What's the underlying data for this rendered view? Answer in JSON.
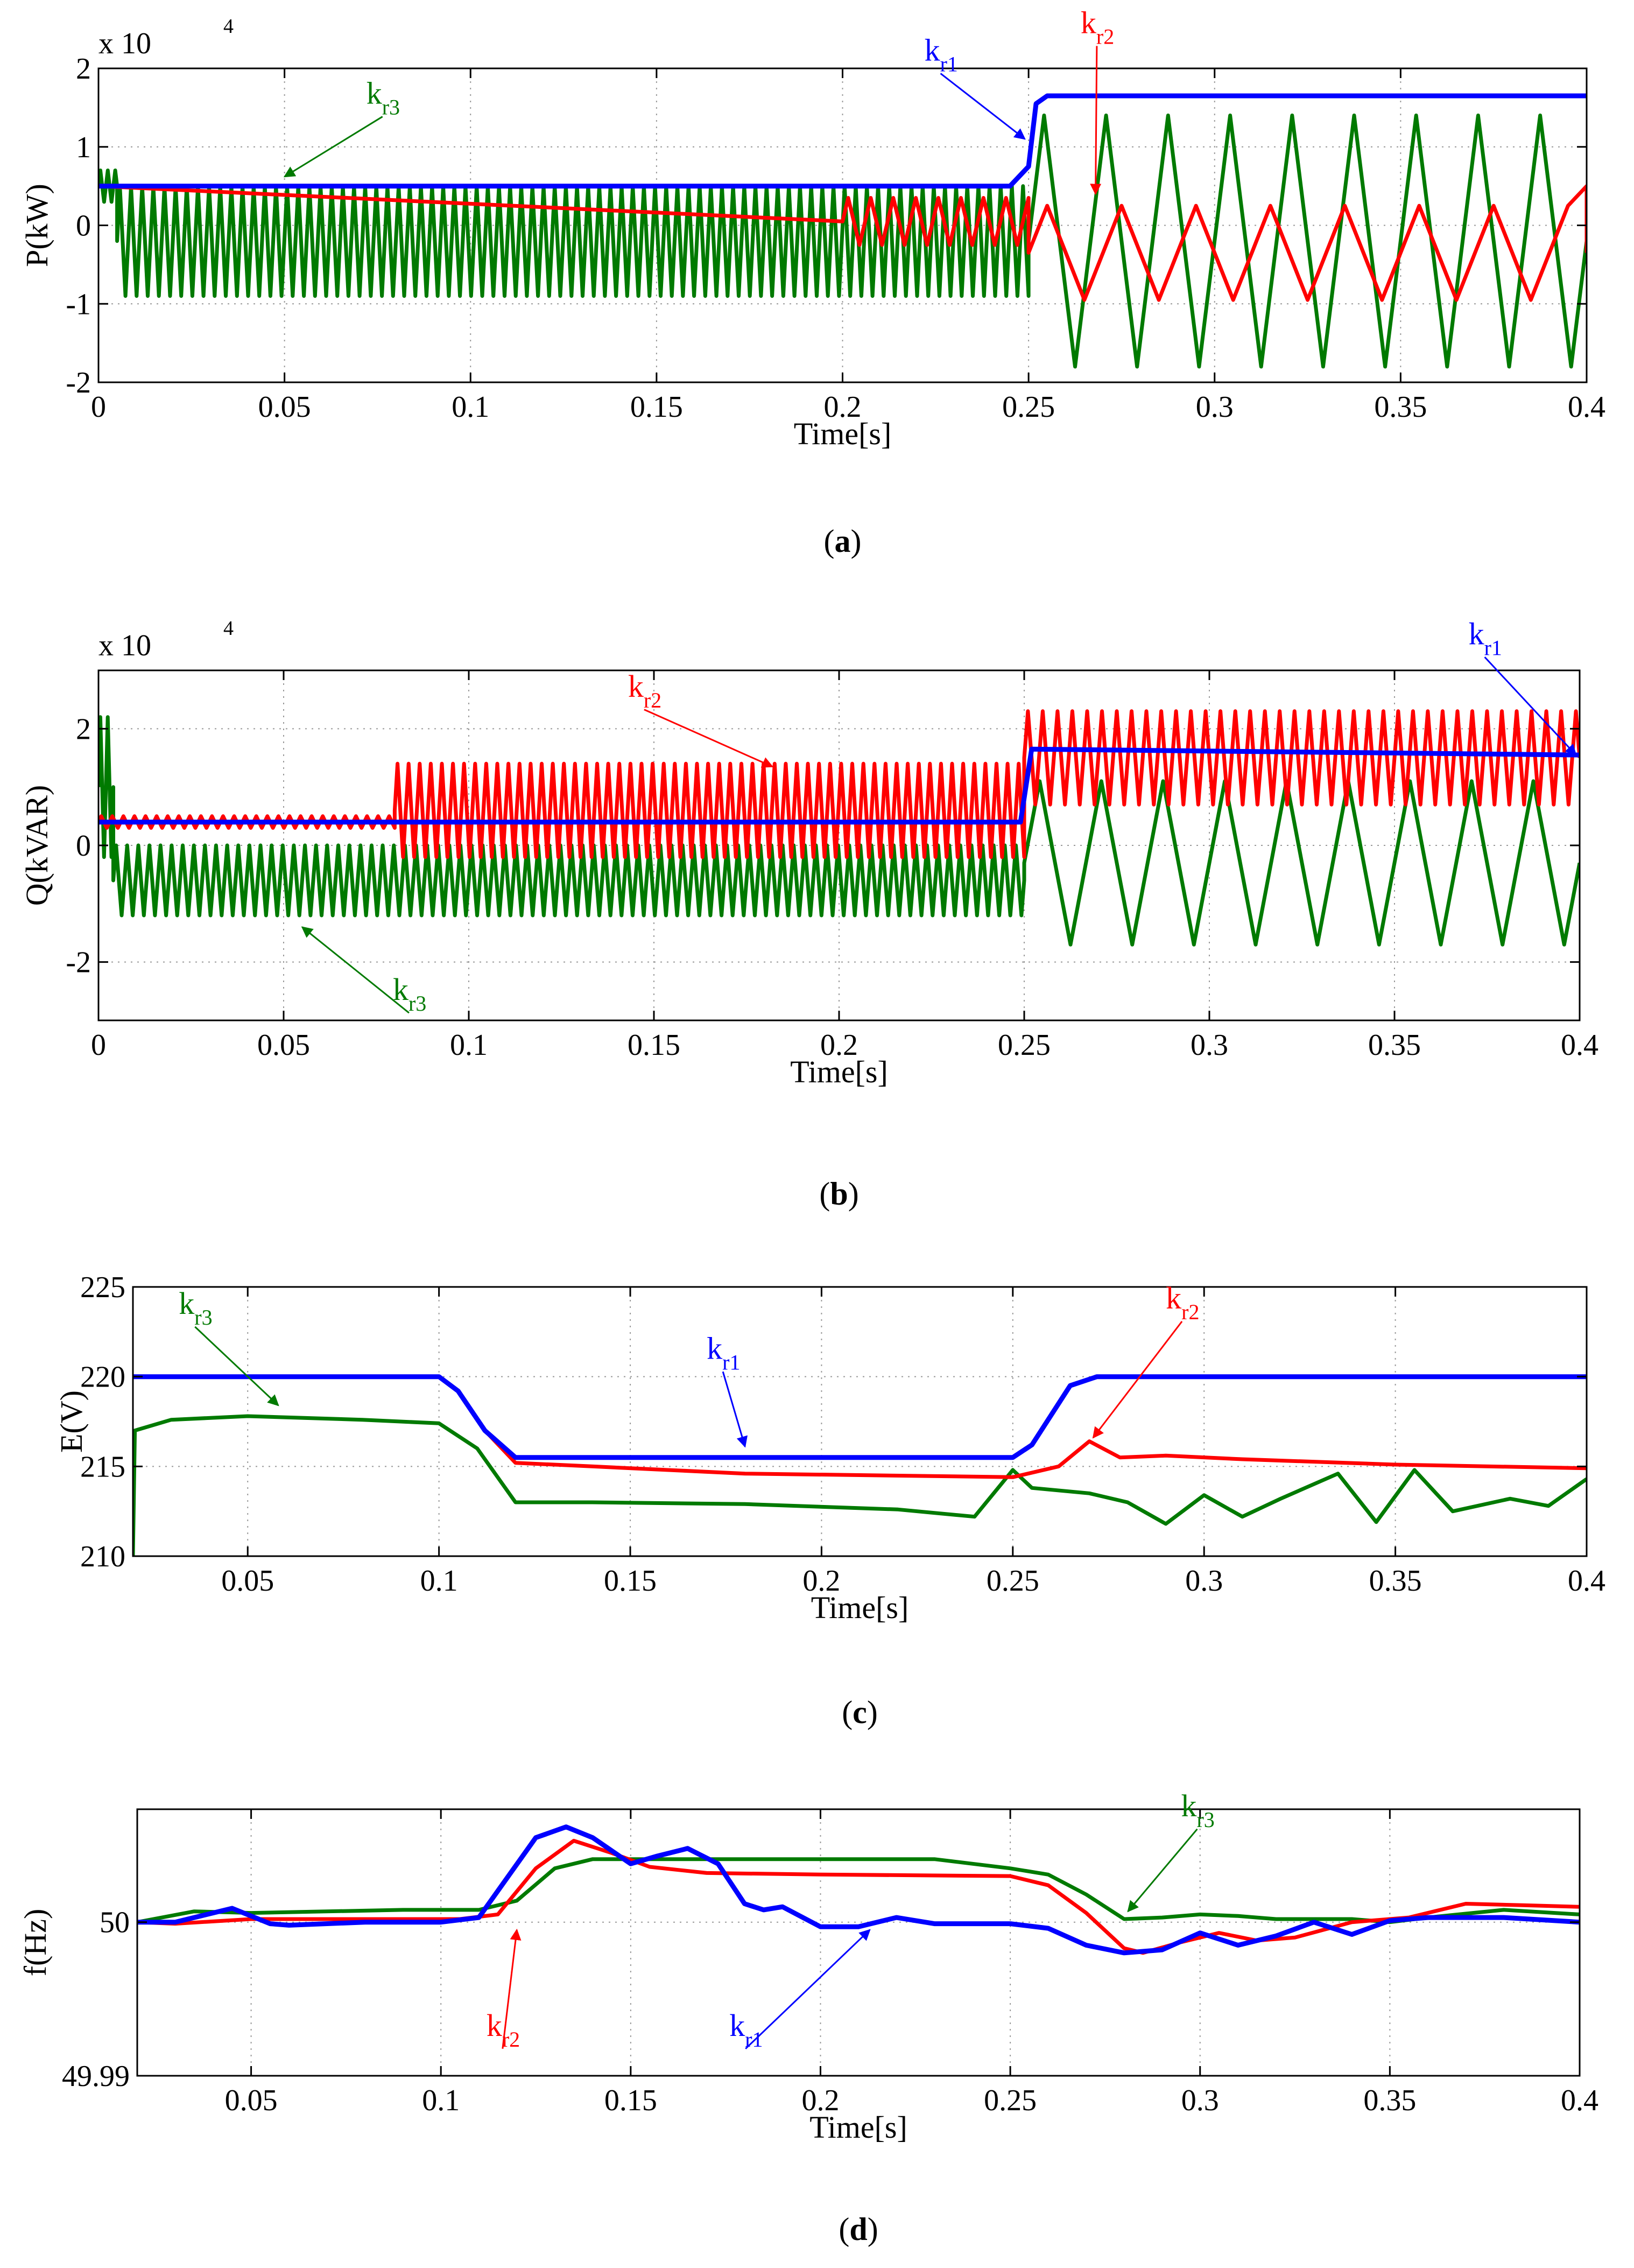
{
  "colors": {
    "k_r1": "#0000ff",
    "k_r2": "#ff0000",
    "k_r3": "#007a00",
    "grid": "#999999",
    "axis": "#000000"
  },
  "chart_data": [
    {
      "id": "a",
      "type": "line",
      "caption": "a",
      "xlabel": "Time[s]",
      "ylabel": "P(kW)",
      "multiplier": "x 10",
      "multiplier_exp": "4",
      "xlim": [
        0,
        0.4
      ],
      "ylim": [
        -2,
        2
      ],
      "xticks": [
        "0",
        "0.05",
        "0.1",
        "0.15",
        "0.2",
        "0.25",
        "0.3",
        "0.35",
        "0.4"
      ],
      "yticks": [
        "-2",
        "-1",
        "0",
        "1",
        "2"
      ],
      "ytick_values": [
        -2,
        -1,
        0,
        1,
        2
      ],
      "series": [
        {
          "key": "k_r1",
          "name": "k",
          "sub": "r1",
          "points": [
            [
              0,
              0.5
            ],
            [
              0.245,
              0.5
            ],
            [
              0.25,
              0.75
            ],
            [
              0.252,
              1.55
            ],
            [
              0.255,
              1.65
            ],
            [
              0.4,
              1.65
            ]
          ],
          "osc": []
        },
        {
          "key": "k_r2",
          "name": "k",
          "sub": "r2",
          "points": [
            [
              0,
              0.5
            ],
            [
              0.4,
              0.5
            ]
          ],
          "osc": [
            {
              "from": 0.2,
              "to": 0.25,
              "period": 0.006,
              "amp": 0.3,
              "offset": 0.05
            },
            {
              "from": 0.25,
              "to": 0.4,
              "period": 0.02,
              "amp": 0.6,
              "offset": -0.35
            }
          ]
        },
        {
          "key": "k_r3",
          "name": "k",
          "sub": "r3",
          "points": [],
          "osc": [
            {
              "from": 0,
              "to": 0.005,
              "period": 0.002,
              "amp": 0.2,
              "offset": 0.5
            },
            {
              "from": 0.005,
              "to": 0.25,
              "period": 0.003,
              "amp": 0.7,
              "offset": -0.2
            },
            {
              "from": 0.25,
              "to": 0.4,
              "period": 0.0167,
              "amp": 1.6,
              "offset": -0.2
            }
          ]
        }
      ],
      "labels": [
        {
          "key": "k_r3",
          "name": "k",
          "sub": "r3",
          "text_x": 0.072,
          "text_y": 1.55,
          "arrow_to": [
            0.05,
            0.62
          ]
        },
        {
          "key": "k_r1",
          "name": "k",
          "sub": "r1",
          "text_x": 0.222,
          "text_y": 2.1,
          "arrow_to": [
            0.249,
            1.1
          ]
        },
        {
          "key": "k_r2",
          "name": "k",
          "sub": "r2",
          "text_x": 0.264,
          "text_y": 2.45,
          "arrow_to": [
            0.268,
            0.4
          ]
        }
      ]
    },
    {
      "id": "b",
      "type": "line",
      "caption": "b",
      "xlabel": "Time[s]",
      "ylabel": "Q(kVAR)",
      "multiplier": "x 10",
      "multiplier_exp": "4",
      "xlim": [
        0,
        0.4
      ],
      "ylim": [
        -3,
        3
      ],
      "xticks": [
        "0",
        "0.05",
        "0.1",
        "0.15",
        "0.2",
        "0.25",
        "0.3",
        "0.35",
        "0.4"
      ],
      "yticks": [
        "-2",
        "0",
        "2"
      ],
      "ytick_values": [
        -2,
        0,
        2
      ],
      "series": [
        {
          "key": "k_r1",
          "name": "k",
          "sub": "r1",
          "points": [
            [
              0,
              0.4
            ],
            [
              0.249,
              0.4
            ],
            [
              0.252,
              1.65
            ],
            [
              0.4,
              1.55
            ]
          ],
          "osc": []
        },
        {
          "key": "k_r2",
          "name": "k",
          "sub": "r2",
          "points": [],
          "osc": [
            {
              "from": 0,
              "to": 0.08,
              "period": 0.003,
              "amp": 0.1,
              "offset": 0.4
            },
            {
              "from": 0.08,
              "to": 0.25,
              "period": 0.003,
              "amp": 0.8,
              "offset": 0.6
            },
            {
              "from": 0.25,
              "to": 0.4,
              "period": 0.004,
              "amp": 0.8,
              "offset": 1.5
            }
          ]
        },
        {
          "key": "k_r3",
          "name": "k",
          "sub": "r3",
          "points": [],
          "osc": [
            {
              "from": 0,
              "to": 0.004,
              "period": 0.002,
              "amp": 1.2,
              "offset": 1.0
            },
            {
              "from": 0.004,
              "to": 0.25,
              "period": 0.003,
              "amp": 0.6,
              "offset": -0.6
            },
            {
              "from": 0.25,
              "to": 0.4,
              "period": 0.0167,
              "amp": 1.4,
              "offset": -0.3
            }
          ]
        }
      ],
      "labels": [
        {
          "key": "k_r2",
          "name": "k",
          "sub": "r2",
          "text_x": 0.143,
          "text_y": 2.55,
          "arrow_to": [
            0.182,
            1.35
          ]
        },
        {
          "key": "k_r1",
          "name": "k",
          "sub": "r1",
          "text_x": 0.37,
          "text_y": 3.45,
          "arrow_to": [
            0.399,
            1.55
          ]
        },
        {
          "key": "k_r3",
          "name": "k",
          "sub": "r3",
          "text_x": 0.0795,
          "text_y": -2.65,
          "arrow_to": [
            0.055,
            -1.4
          ]
        }
      ]
    },
    {
      "id": "c",
      "type": "line",
      "caption": "c",
      "xlabel": "Time[s]",
      "ylabel": "E(V)",
      "multiplier": "",
      "multiplier_exp": "",
      "xlim": [
        0.02,
        0.4
      ],
      "ylim": [
        210,
        225
      ],
      "xticks": [
        "0.05",
        "0.1",
        "0.15",
        "0.2",
        "0.25",
        "0.3",
        "0.35",
        "0.4"
      ],
      "yticks": [
        "210",
        "215",
        "220",
        "225"
      ],
      "ytick_values": [
        210,
        215,
        220,
        225
      ],
      "series": [
        {
          "key": "k_r1",
          "name": "k",
          "sub": "r1",
          "points": [
            [
              0.02,
              220
            ],
            [
              0.1,
              220
            ],
            [
              0.105,
              219.2
            ],
            [
              0.112,
              217
            ],
            [
              0.12,
              215.5
            ],
            [
              0.25,
              215.5
            ],
            [
              0.255,
              216.2
            ],
            [
              0.265,
              219.5
            ],
            [
              0.272,
              220
            ],
            [
              0.4,
              220
            ]
          ],
          "osc": []
        },
        {
          "key": "k_r2",
          "name": "k",
          "sub": "r2",
          "points": [
            [
              0.02,
              220
            ],
            [
              0.1,
              220
            ],
            [
              0.105,
              219.2
            ],
            [
              0.112,
              217
            ],
            [
              0.12,
              215.2
            ],
            [
              0.14,
              215
            ],
            [
              0.18,
              214.6
            ],
            [
              0.25,
              214.4
            ],
            [
              0.262,
              215
            ],
            [
              0.27,
              216.4
            ],
            [
              0.278,
              215.5
            ],
            [
              0.29,
              215.6
            ],
            [
              0.31,
              215.4
            ],
            [
              0.35,
              215.1
            ],
            [
              0.4,
              214.9
            ]
          ],
          "osc": []
        },
        {
          "key": "k_r3",
          "name": "k",
          "sub": "r3",
          "points": [
            [
              0.02,
              210
            ],
            [
              0.0205,
              217
            ],
            [
              0.03,
              217.6
            ],
            [
              0.05,
              217.8
            ],
            [
              0.08,
              217.6
            ],
            [
              0.1,
              217.4
            ],
            [
              0.11,
              216
            ],
            [
              0.12,
              213
            ],
            [
              0.14,
              213
            ],
            [
              0.18,
              212.9
            ],
            [
              0.22,
              212.6
            ],
            [
              0.24,
              212.2
            ],
            [
              0.25,
              214.8
            ],
            [
              0.255,
              213.8
            ],
            [
              0.27,
              213.5
            ],
            [
              0.28,
              213
            ],
            [
              0.29,
              211.8
            ],
            [
              0.3,
              213.4
            ],
            [
              0.31,
              212.2
            ],
            [
              0.32,
              213.2
            ],
            [
              0.335,
              214.6
            ],
            [
              0.345,
              211.9
            ],
            [
              0.355,
              214.8
            ],
            [
              0.365,
              212.5
            ],
            [
              0.38,
              213.2
            ],
            [
              0.39,
              212.8
            ],
            [
              0.4,
              214.3
            ]
          ],
          "osc": []
        }
      ],
      "labels": [
        {
          "key": "k_r3",
          "name": "k",
          "sub": "r3",
          "text_x": 0.032,
          "text_y": 223.5,
          "arrow_to": [
            0.058,
            218.4
          ]
        },
        {
          "key": "k_r1",
          "name": "k",
          "sub": "r1",
          "text_x": 0.17,
          "text_y": 221,
          "arrow_to": [
            0.18,
            216.1
          ]
        },
        {
          "key": "k_r2",
          "name": "k",
          "sub": "r2",
          "text_x": 0.29,
          "text_y": 223.8,
          "arrow_to": [
            0.271,
            216.6
          ]
        }
      ]
    },
    {
      "id": "d",
      "type": "line",
      "caption": "d",
      "xlabel": "Time[s]",
      "ylabel": "f(Hz)",
      "multiplier": "",
      "multiplier_exp": "",
      "xlim": [
        0.02,
        0.4
      ],
      "ylim": [
        49.99,
        50.00735
      ],
      "xticks": [
        "0.05",
        "0.1",
        "0.15",
        "0.2",
        "0.25",
        "0.3",
        "0.35",
        "0.4"
      ],
      "yticks": [
        "49.99",
        "50"
      ],
      "ytick_values": [
        49.99,
        50
      ],
      "series": [
        {
          "key": "k_r1",
          "name": "k",
          "sub": "r1",
          "points": [
            [
              0.02,
              50.0
            ],
            [
              0.03,
              50.0
            ],
            [
              0.045,
              50.0009
            ],
            [
              0.055,
              49.9999
            ],
            [
              0.06,
              49.9998
            ],
            [
              0.08,
              50.0
            ],
            [
              0.1,
              50.0
            ],
            [
              0.11,
              50.0003
            ],
            [
              0.125,
              50.0055
            ],
            [
              0.133,
              50.0062
            ],
            [
              0.14,
              50.0055
            ],
            [
              0.15,
              50.0038
            ],
            [
              0.157,
              50.0043
            ],
            [
              0.165,
              50.0048
            ],
            [
              0.173,
              50.0038
            ],
            [
              0.18,
              50.0012
            ],
            [
              0.185,
              50.0008
            ],
            [
              0.19,
              50.001
            ],
            [
              0.2,
              49.9997
            ],
            [
              0.21,
              49.9997
            ],
            [
              0.22,
              50.0003
            ],
            [
              0.23,
              49.9999
            ],
            [
              0.25,
              49.9999
            ],
            [
              0.26,
              49.9996
            ],
            [
              0.27,
              49.9985
            ],
            [
              0.28,
              49.998
            ],
            [
              0.29,
              49.9982
            ],
            [
              0.3,
              49.9993
            ],
            [
              0.31,
              49.9985
            ],
            [
              0.32,
              49.9991
            ],
            [
              0.33,
              50.0
            ],
            [
              0.34,
              49.9992
            ],
            [
              0.35,
              50.0001
            ],
            [
              0.36,
              50.0003
            ],
            [
              0.38,
              50.0003
            ],
            [
              0.4,
              50.0
            ]
          ],
          "osc": []
        },
        {
          "key": "k_r2",
          "name": "k",
          "sub": "r2",
          "points": [
            [
              0.02,
              50.0
            ],
            [
              0.03,
              49.9999
            ],
            [
              0.05,
              50.0002
            ],
            [
              0.08,
              50.0002
            ],
            [
              0.105,
              50.0002
            ],
            [
              0.115,
              50.0005
            ],
            [
              0.125,
              50.0035
            ],
            [
              0.135,
              50.0053
            ],
            [
              0.145,
              50.0045
            ],
            [
              0.155,
              50.0036
            ],
            [
              0.17,
              50.0032
            ],
            [
              0.2,
              50.0031
            ],
            [
              0.25,
              50.003
            ],
            [
              0.26,
              50.0024
            ],
            [
              0.27,
              50.0006
            ],
            [
              0.28,
              49.9983
            ],
            [
              0.285,
              49.998
            ],
            [
              0.295,
              49.9987
            ],
            [
              0.305,
              49.9993
            ],
            [
              0.315,
              49.9988
            ],
            [
              0.325,
              49.999
            ],
            [
              0.34,
              50.0
            ],
            [
              0.355,
              50.0003
            ],
            [
              0.37,
              50.0012
            ],
            [
              0.385,
              50.0011
            ],
            [
              0.4,
              50.001
            ]
          ],
          "osc": []
        },
        {
          "key": "k_r3",
          "name": "k",
          "sub": "r3",
          "points": [
            [
              0.02,
              50.0
            ],
            [
              0.035,
              50.0007
            ],
            [
              0.05,
              50.0006
            ],
            [
              0.09,
              50.0008
            ],
            [
              0.11,
              50.0008
            ],
            [
              0.12,
              50.0014
            ],
            [
              0.13,
              50.0035
            ],
            [
              0.14,
              50.0041
            ],
            [
              0.16,
              50.0041
            ],
            [
              0.2,
              50.0041
            ],
            [
              0.23,
              50.0041
            ],
            [
              0.25,
              50.0035
            ],
            [
              0.26,
              50.0031
            ],
            [
              0.27,
              50.0018
            ],
            [
              0.28,
              50.0002
            ],
            [
              0.29,
              50.0003
            ],
            [
              0.3,
              50.0005
            ],
            [
              0.31,
              50.0004
            ],
            [
              0.32,
              50.0002
            ],
            [
              0.34,
              50.0002
            ],
            [
              0.35,
              50.0
            ],
            [
              0.36,
              50.0003
            ],
            [
              0.38,
              50.0008
            ],
            [
              0.4,
              50.0005
            ]
          ],
          "osc": []
        }
      ],
      "labels": [
        {
          "key": "k_r3",
          "name": "k",
          "sub": "r3",
          "text_x": 0.295,
          "text_y": 50.0069,
          "arrow_to": [
            0.281,
            50.0007
          ]
        },
        {
          "key": "k_r2",
          "name": "k",
          "sub": "r2",
          "text_x": 0.112,
          "text_y": 49.9926,
          "arrow_to": [
            0.12,
            49.9995
          ]
        },
        {
          "key": "k_r1",
          "name": "k",
          "sub": "r1",
          "text_x": 0.176,
          "text_y": 49.9926,
          "arrow_to": [
            0.213,
            49.9995
          ]
        }
      ]
    }
  ]
}
